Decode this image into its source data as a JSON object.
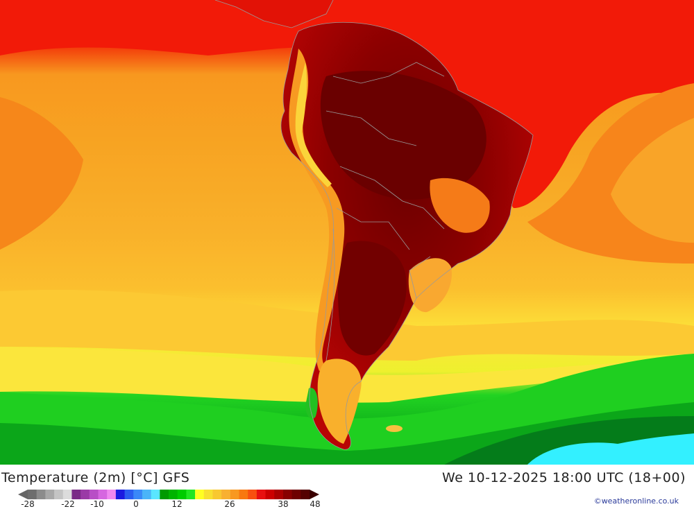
{
  "map": {
    "variable_label": "Temperature (2m) [°C] GFS",
    "valid_time_label": "We 10-12-2025 18:00 UTC (18+00)",
    "credit": "©weatheronline.co.uk",
    "region": "South America",
    "legend": {
      "ticks": [
        "-28",
        "-22",
        "-10",
        "0",
        "12",
        "26",
        "38",
        "48"
      ],
      "colors": [
        "#6e6e6e",
        "#8c8c8c",
        "#a8a8a8",
        "#c4c4c4",
        "#dcdcdc",
        "#7a2a86",
        "#9a3aa6",
        "#b84ec6",
        "#d666e0",
        "#f088f0",
        "#1a1ae0",
        "#2a5cf0",
        "#3a88f8",
        "#4ab4f8",
        "#5ae6ff",
        "#009a00",
        "#00b400",
        "#00cc00",
        "#22e622",
        "#ffff22",
        "#f8e030",
        "#f8c830",
        "#f8b030",
        "#f89820",
        "#f87810",
        "#f85010",
        "#e81010",
        "#cc0000",
        "#aa0000",
        "#880000",
        "#6e0000",
        "#550000"
      ],
      "land_colors": {
        "ocean_tropics": "#f21a08",
        "ocean_subtropics": "#f88c1c",
        "ocean_midlat": "#fbba2c",
        "ocean_cool": "#fde33c",
        "ocean_cold": "#22d022",
        "ocean_polar": "#007a1a",
        "ice": "#33f0ff",
        "land_hot": "#8a0000",
        "land_very_hot": "#6a0000",
        "land_warm": "#c40000"
      }
    }
  }
}
